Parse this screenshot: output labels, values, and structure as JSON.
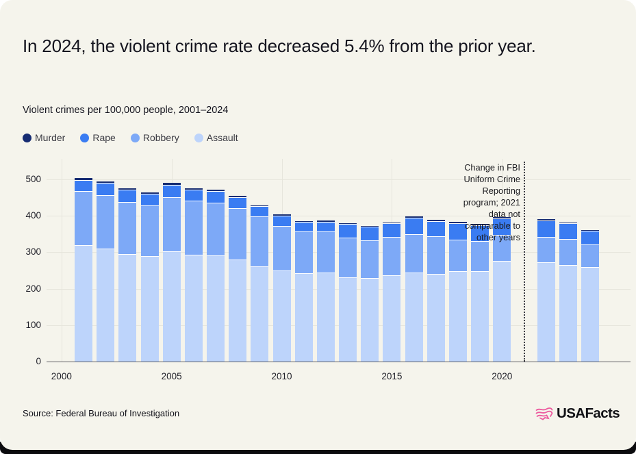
{
  "header": {
    "title": "In 2024, the violent crime rate decreased 5.4% from the prior year.",
    "subtitle": "Violent crimes per 100,000 people, 2001–2024"
  },
  "chart_data": {
    "type": "stacked_bar",
    "x": [
      2001,
      2002,
      2003,
      2004,
      2005,
      2006,
      2007,
      2008,
      2009,
      2010,
      2011,
      2012,
      2013,
      2014,
      2015,
      2016,
      2017,
      2018,
      2019,
      2020,
      2022,
      2023,
      2024
    ],
    "series": [
      {
        "name": "Murder",
        "color": "#162C72",
        "values": [
          6,
          6,
          6,
          5,
          6,
          6,
          6,
          5,
          5,
          5,
          5,
          5,
          4.5,
          4.5,
          5,
          6,
          5.5,
          5,
          4.5,
          6,
          6,
          5,
          4.5
        ]
      },
      {
        "name": "Rape",
        "color": "#3A7CF2",
        "values": [
          31,
          33,
          33,
          33,
          35,
          31,
          31,
          30,
          28,
          28,
          25,
          26,
          37.5,
          37,
          37,
          45,
          41,
          46,
          43.5,
          46,
          45,
          43,
          37
        ]
      },
      {
        "name": "Robbery",
        "color": "#7DA9F7",
        "values": [
          148,
          146,
          143,
          139,
          148,
          147,
          146,
          142,
          136,
          122,
          115,
          113,
          108,
          103.5,
          105,
          105,
          104.5,
          86,
          82,
          71,
          69,
          71,
          62
        ]
      },
      {
        "name": "Assault",
        "color": "#BDD4FB",
        "values": [
          318,
          309,
          294,
          287,
          301,
          292,
          289,
          278,
          260,
          249,
          241,
          243,
          230,
          228,
          235,
          242,
          238,
          246,
          247,
          274,
          271,
          263,
          258
        ]
      }
    ],
    "totals": [
      503,
      494,
      476,
      464,
      490,
      476,
      472,
      455,
      429,
      404,
      386,
      387,
      380,
      373,
      382,
      398,
      389,
      383,
      377,
      397,
      391,
      382,
      361.5
    ],
    "ylim": [
      0,
      540
    ],
    "yticks": [
      0,
      100,
      200,
      300,
      400,
      500
    ],
    "xticks": [
      2000,
      2005,
      2010,
      2015,
      2020
    ],
    "gap_year": 2021,
    "annotation": "Change in FBI\nUniform Crime\nReporting\nprogram; 2021\ndata not\ncomparable to\nother years",
    "grid": "on",
    "legend_position": "top-left"
  },
  "footer": {
    "source": "Source: Federal Bureau of Investigation",
    "brand": "USAFacts",
    "brand_accent_color": "#EC5A9E"
  }
}
